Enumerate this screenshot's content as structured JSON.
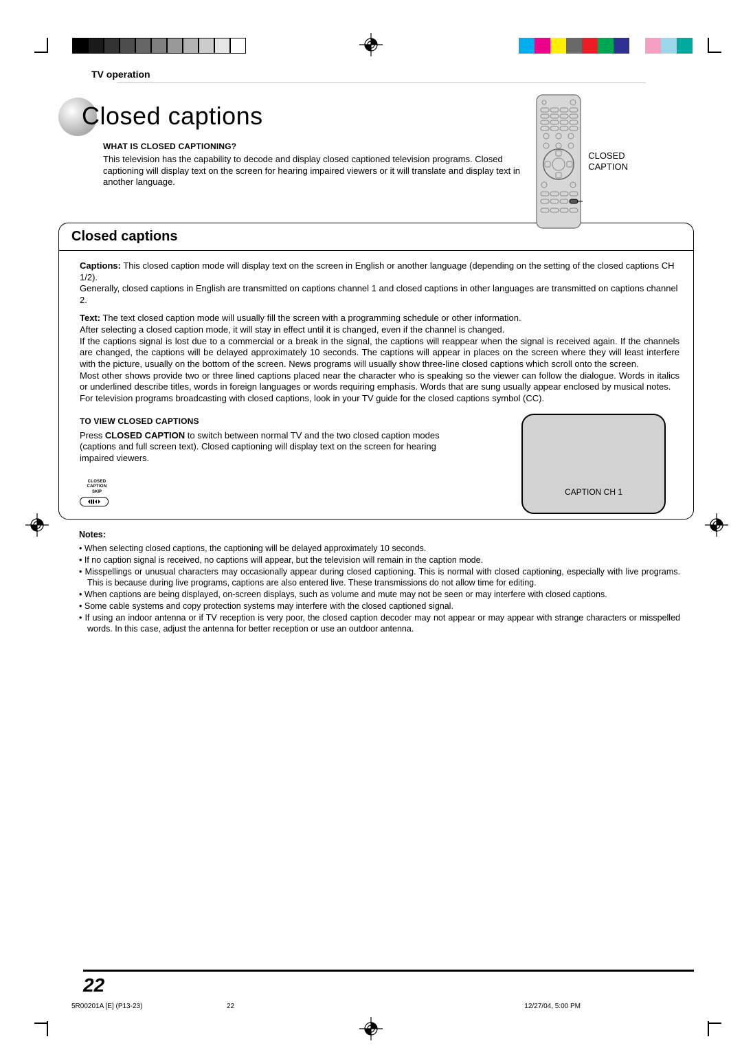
{
  "print_marks": {
    "gray_swatches": [
      "#000000",
      "#1a1a1a",
      "#333333",
      "#4d4d4d",
      "#666666",
      "#808080",
      "#999999",
      "#b3b3b3",
      "#cccccc",
      "#e6e6e6",
      "#ffffff"
    ],
    "color_swatches": [
      "#00aeef",
      "#ec008c",
      "#fff200",
      "#696969",
      "#ed1c24",
      "#00a651",
      "#2e3192",
      "#ffffff",
      "#f69ec4",
      "#9bd7eb",
      "#00a99d"
    ]
  },
  "header": {
    "kicker": "TV operation",
    "title": "Closed captions"
  },
  "intro": {
    "heading": "WHAT IS CLOSED CAPTIONING?",
    "body": "This television has the capability to decode and display closed captioned television programs. Closed captioning will display text on the screen for hearing impaired viewers or it will translate and display text in another language."
  },
  "remote": {
    "callout": "CLOSED CAPTION"
  },
  "box": {
    "title": "Closed captions",
    "para_captions_label": "Captions:",
    "para_captions": " This closed caption mode will display text on the screen in English or another language (depending on the setting of the closed captions CH 1/2).\nGenerally, closed captions in English are transmitted on captions channel 1 and closed captions in other languages are transmitted on captions channel 2.",
    "para_text_label": "Text:",
    "para_text": " The text closed caption mode will usually fill the screen with a programming schedule or other information.\nAfter selecting a closed caption mode, it will stay in effect until it is changed, even if the channel is changed.\nIf the captions signal is lost due to a commercial or a break in the signal, the captions will reappear when the signal is received again. If the channels are changed, the captions will be delayed approximately 10 seconds. The captions will appear in places on the screen where they will least interfere with the picture, usually on the bottom of the screen. News programs will usually show three-line closed captions which scroll onto the screen.\nMost other shows provide two or three lined captions placed near the character who is speaking so the viewer can follow the dialogue. Words in italics or underlined describe titles, words in foreign languages or words requiring emphasis. Words that are sung usually appear enclosed by musical notes.\nFor television programs broadcasting with closed captions, look in your TV guide for the closed captions symbol (CC).",
    "view_heading": "TO VIEW CLOSED CAPTIONS",
    "view_body_pre": "Press ",
    "view_body_strong": "CLOSED CAPTION",
    "view_body_post": " to switch between normal TV and the two closed caption modes (captions and full screen text). Closed captioning will display text on the screen for hearing impaired viewers.",
    "tv_text": "CAPTION  CH 1",
    "cc_button_line1": "CLOSED CAPTION",
    "cc_button_line2": "SKIP"
  },
  "notes": {
    "heading": "Notes:",
    "items": [
      "When selecting closed captions, the captioning will be delayed approximately 10 seconds.",
      "If no caption signal is received, no captions will appear, but the television will remain in the caption mode.",
      "Misspellings or unusual characters may occasionally appear during closed captioning. This is normal with closed captioning, especially with live programs. This is because during live programs, captions are also entered live. These transmissions do not allow time for editing.",
      "When captions are being displayed, on-screen displays, such as volume and mute may not be seen or may interfere with closed captions.",
      "Some cable systems and copy protection systems may interfere with the closed captioned signal.",
      "If using an indoor antenna or if TV reception is very poor, the closed caption decoder may not appear or may appear with strange characters or misspelled words. In this case, adjust the antenna for better reception or use an outdoor antenna."
    ]
  },
  "footer": {
    "page_number": "22",
    "slug_left": "5R00201A [E] (P13-23)",
    "slug_center": "22",
    "slug_right": "12/27/04, 5:00 PM"
  }
}
